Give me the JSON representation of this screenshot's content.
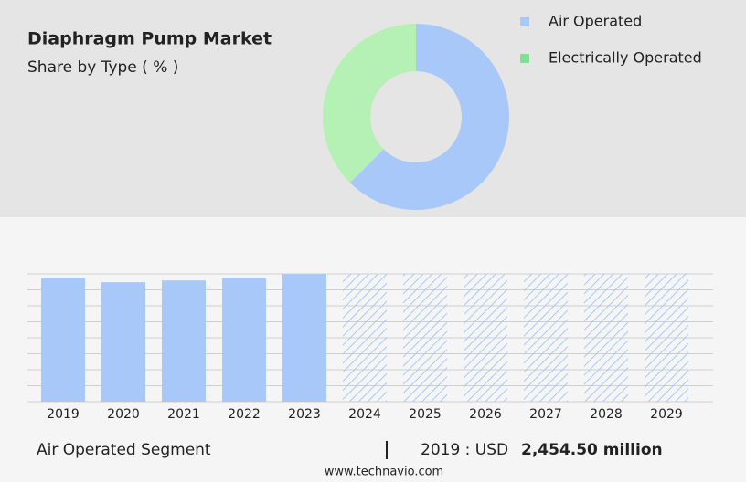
{
  "chart_data": [
    {
      "type": "pie",
      "title": "Diaphragm Pump Market",
      "subtitle": "Share by Type ( % )",
      "categories": [
        "Air Operated",
        "Electrically Operated"
      ],
      "values": [
        62.5,
        37.5
      ],
      "colors": [
        "#a8c8fa",
        "#b5f0b5"
      ],
      "legend_colors": [
        "#a8c8fa",
        "#7ee28e"
      ],
      "donut": true,
      "legend": "right"
    },
    {
      "type": "bar",
      "categories": [
        "2019",
        "2020",
        "2021",
        "2022",
        "2023",
        "2024",
        "2025",
        "2026",
        "2027",
        "2028",
        "2029"
      ],
      "values": [
        2454.5,
        2365,
        2400,
        2455,
        2527,
        null,
        null,
        null,
        null,
        null,
        null
      ],
      "color": "#a8c8fa",
      "ylim": [
        0,
        2530
      ],
      "grid": true
    }
  ],
  "footer": {
    "segment": "Air Operated Segment",
    "year_label": "2019 : USD",
    "value": "2,454.50 million",
    "source": "www.technavio.com"
  }
}
